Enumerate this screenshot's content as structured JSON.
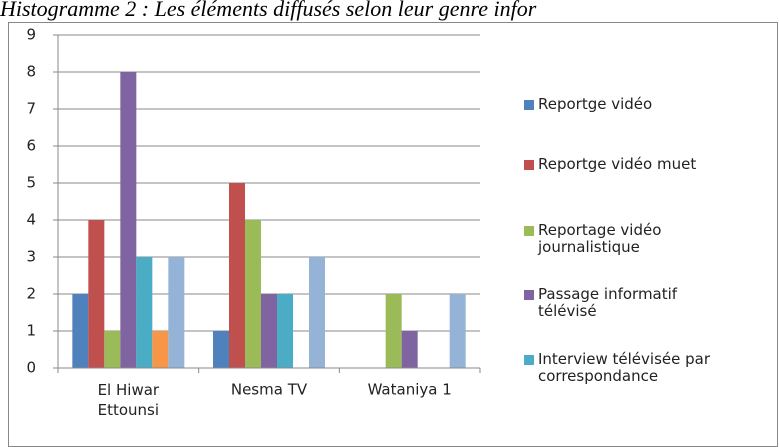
{
  "chart_data": {
    "type": "bar",
    "title": "Histogramme 2 : Les éléments diffusés selon leur genre infor",
    "categories": [
      "El Hiwar Ettounsi",
      "Nesma TV",
      "Wataniya 1"
    ],
    "series": [
      {
        "name": "Reportge vidéo",
        "color": "#4f81bd",
        "values": [
          2,
          1,
          0
        ]
      },
      {
        "name": "Reportge vidéo muet",
        "color": "#c0504d",
        "values": [
          4,
          5,
          0
        ]
      },
      {
        "name": "Reportage vidéo journalistique",
        "color": "#9bbb59",
        "values": [
          1,
          4,
          2
        ]
      },
      {
        "name": "Passage informatif télévisé",
        "color": "#8064a2",
        "values": [
          8,
          2,
          1
        ]
      },
      {
        "name": "Interview télévisée par correspondance",
        "color": "#4bacc6",
        "values": [
          3,
          2,
          0
        ]
      },
      {
        "color": "#f79646",
        "values": [
          1,
          0,
          0
        ]
      },
      {
        "color": "#95b3d7",
        "values": [
          3,
          3,
          2
        ]
      }
    ],
    "ylim": [
      0,
      9
    ],
    "yticks": [
      0,
      1,
      2,
      3,
      4,
      5,
      6,
      7,
      8,
      9
    ],
    "grid": true
  }
}
